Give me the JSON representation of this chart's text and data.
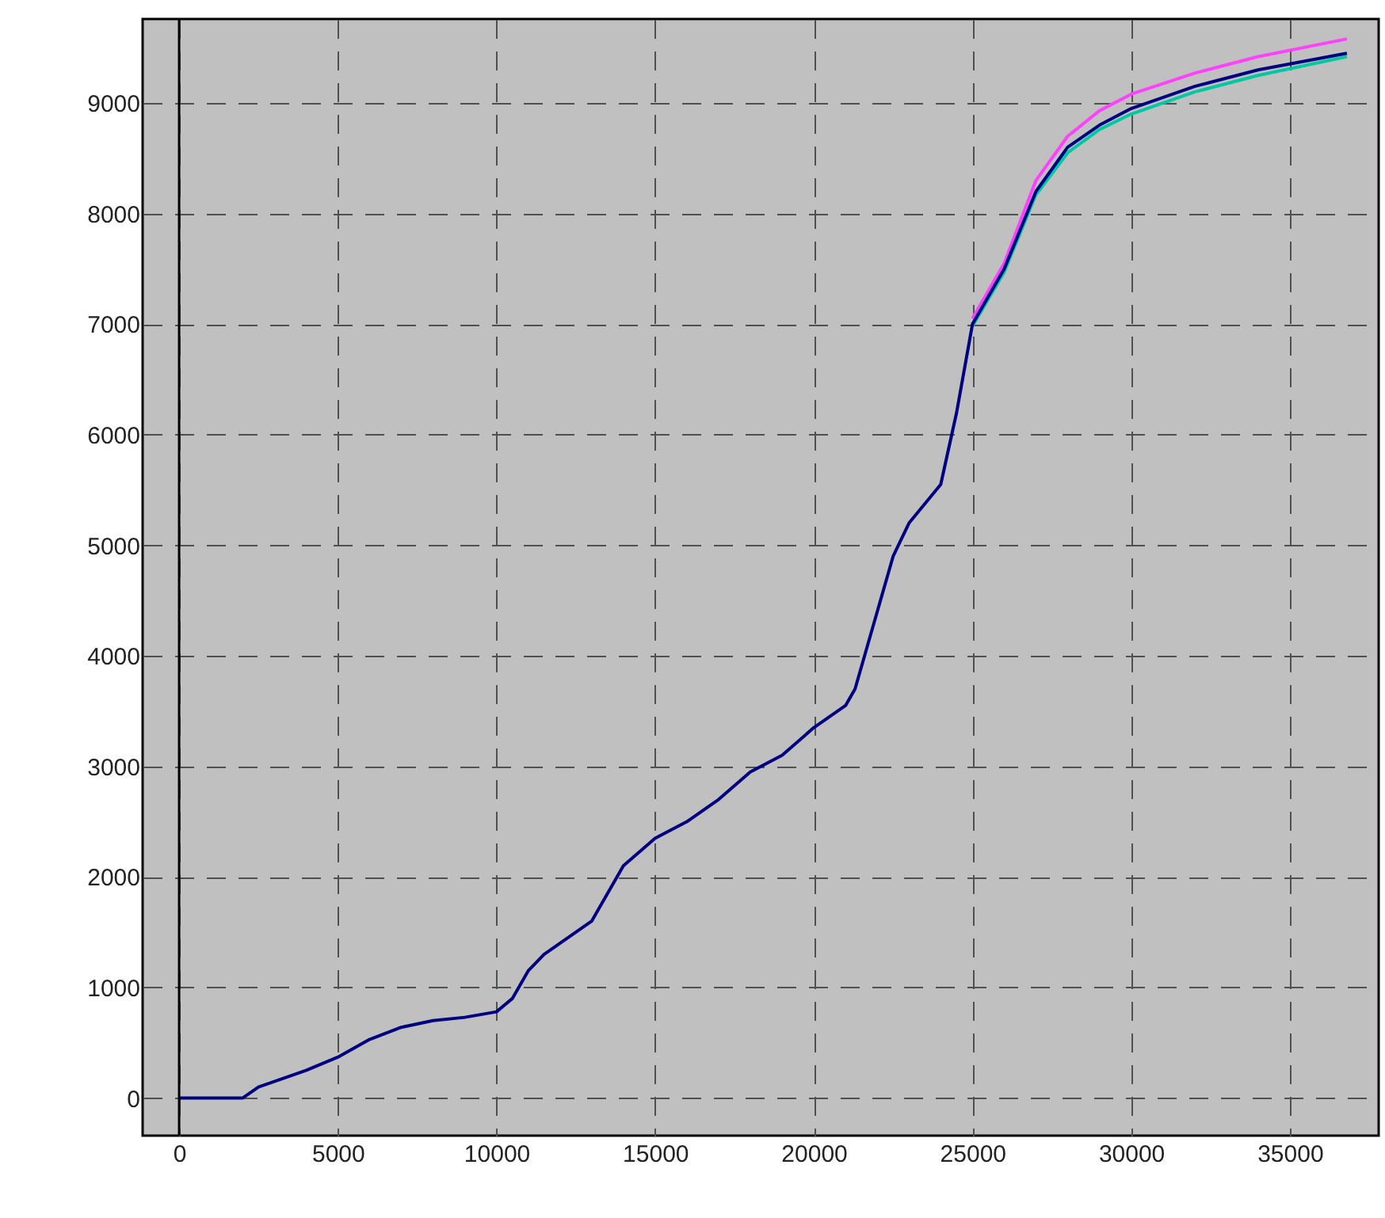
{
  "chart_data": {
    "type": "line",
    "xlim": [
      -1150,
      37800
    ],
    "ylim": [
      -340,
      9760
    ],
    "xticks": [
      0,
      5000,
      10000,
      15000,
      20000,
      25000,
      30000,
      35000
    ],
    "yticks": [
      0,
      1000,
      2000,
      3000,
      4000,
      5000,
      6000,
      7000,
      8000,
      9000
    ],
    "grid": true,
    "line_style": "solid",
    "marker": "none",
    "ref_lines": [
      {
        "axis": "x",
        "value": 0,
        "color": "#000000",
        "line_style": "solid"
      }
    ],
    "series": [
      {
        "color": "#ff40ff",
        "x": [
          25000,
          26000,
          27000,
          28000,
          29000,
          30000,
          32000,
          34000,
          36800
        ],
        "values": [
          7050,
          7550,
          8300,
          8700,
          8930,
          9080,
          9270,
          9420,
          9580
        ]
      },
      {
        "color": "#00c8a0",
        "x": [
          25000,
          26000,
          27000,
          28000,
          29000,
          30000,
          32000,
          34000,
          36800
        ],
        "values": [
          6980,
          7470,
          8170,
          8550,
          8760,
          8900,
          9100,
          9250,
          9420
        ]
      },
      {
        "color": "#000080",
        "x": [
          0,
          2000,
          2500,
          3000,
          4000,
          5000,
          6000,
          7000,
          8000,
          9000,
          10000,
          10500,
          11000,
          11500,
          12000,
          13000,
          13500,
          14000,
          15000,
          16000,
          17000,
          18000,
          19000,
          20000,
          21000,
          21300,
          22000,
          22500,
          23000,
          24000,
          24500,
          25000,
          26000,
          27000,
          28000,
          29000,
          30000,
          32000,
          34000,
          36800
        ],
        "values": [
          0,
          0,
          100,
          150,
          250,
          370,
          530,
          640,
          700,
          730,
          780,
          900,
          1150,
          1300,
          1400,
          1600,
          1850,
          2100,
          2350,
          2500,
          2700,
          2950,
          3100,
          3350,
          3550,
          3700,
          4400,
          4900,
          5200,
          5550,
          6200,
          7000,
          7500,
          8200,
          8600,
          8800,
          8950,
          9150,
          9300,
          9450
        ]
      }
    ]
  }
}
